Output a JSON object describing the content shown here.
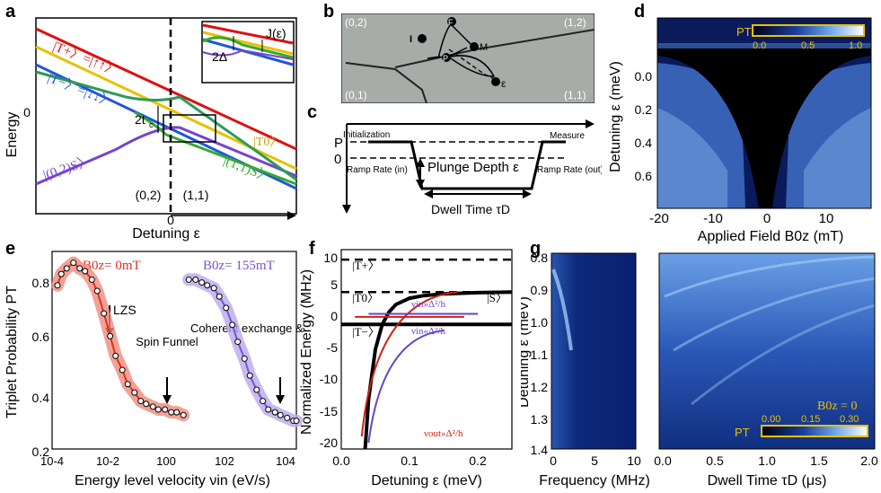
{
  "panels": {
    "a": {
      "label": "a",
      "ylabel": "Energy",
      "xlabel": "Detuning ε",
      "y_tick_zero": "0",
      "x_tick_zero": "0",
      "region_left": "(0,2)",
      "region_right": "(1,1)",
      "gap_label": "2t",
      "gap_label_sub": "c",
      "inset_gap": "2Δ",
      "inset_exchange": "J(ε)",
      "states": {
        "tplus": "|T+〉=|↑↑〉",
        "tminus": "|T−〉=|↓↓〉",
        "s02": "|(0,2)S〉",
        "t0": "|T0〉",
        "s11": "|(1,1)S〉"
      },
      "colors": {
        "tplus": "#dd1111",
        "tminus": "#2255dd",
        "s02": "#7744cc",
        "t0": "#e8c000",
        "s11": "#33aa33",
        "s11_alt": "#2f9a5a"
      }
    },
    "b": {
      "label": "b",
      "corners": [
        "(0,2)",
        "(1,2)",
        "(0,1)",
        "(1,1)"
      ],
      "points": [
        "I",
        "F",
        "M",
        "P",
        "ε"
      ]
    },
    "c": {
      "label": "c",
      "level_p": "P",
      "level_zero": "0",
      "init": "Initialization",
      "measure": "Measure",
      "ramp_in": "Ramp Rate (in)",
      "ramp_out": "Ramp Rate (out)",
      "plunge": "Plunge Depth ε",
      "dwell": "Dwell Time τD"
    },
    "d": {
      "label": "d",
      "ylabel": "Detuning ε (meV)",
      "xlabel": "Applied Field B0z (mT)",
      "colorbar_label": "PT",
      "colorbar_ticks": [
        "0.0",
        "0.5",
        "1.0"
      ],
      "y_ticks": [
        "0.0",
        "0.2",
        "0.4",
        "0.6"
      ],
      "x_ticks": [
        "-20",
        "-10",
        "0",
        "10"
      ]
    },
    "e": {
      "label": "e",
      "ylabel": "Triplet Probability PT",
      "xlabel": "Energy level velocity νin (eV/s)",
      "legend_left": "B0z= 0mT",
      "legend_right": "B0z= 155mT",
      "annotations": [
        "LZS",
        "Spin Funnel",
        "Coherent exchange & ESR"
      ],
      "y_ticks": [
        "0.2",
        "0.4",
        "0.6",
        "0.8"
      ],
      "x_ticks": [
        "10-4",
        "10-2",
        "100",
        "102",
        "104"
      ],
      "colors": {
        "red": "#e03020",
        "red_band": "#f08a7c",
        "purple": "#7755cc",
        "purple_band": "#b9a8ee"
      }
    },
    "f": {
      "label": "f",
      "ylabel": "Normalized Energy (MHz)",
      "xlabel": "Detuning ε (meV)",
      "y_ticks": [
        "10",
        "5",
        "0",
        "-5",
        "-10",
        "-15",
        "-20"
      ],
      "x_ticks": [
        "0.0",
        "0.1",
        "0.2"
      ],
      "state_tplus": "|T+〉",
      "state_t0": "|T0〉",
      "state_tminus": "|T−〉",
      "state_s": "|S〉",
      "fast_label": "νin»Δ²/h",
      "slow_label": "νin«Δ²/h",
      "out_label": "νout»Δ²/h"
    },
    "g": {
      "label": "g",
      "ylabel": "Detuning ε (meV)",
      "xlabel_left": "Frequency (MHz)",
      "xlabel_right": "Dwell Time τD (μs)",
      "y_ticks": [
        "0.8",
        "0.9",
        "1.0",
        "1.1",
        "1.2",
        "1.3",
        "1.4"
      ],
      "x_ticks_left": [
        "0",
        "5",
        "10"
      ],
      "x_ticks_right": [
        "0.0",
        "0.5",
        "1.0",
        "1.5",
        "2.0"
      ],
      "field_label": "B0z = 0",
      "colorbar_label": "PT",
      "colorbar_ticks": [
        "0.00",
        "0.15",
        "0.30"
      ]
    }
  },
  "chart_data": [
    {
      "type": "scatter",
      "title": "e",
      "xlabel": "Energy level velocity νin (eV/s)",
      "ylabel": "Triplet Probability PT",
      "xscale": "log",
      "xlim": [
        0.0001,
        10000
      ],
      "ylim": [
        0.2,
        0.9
      ],
      "series": [
        {
          "name": "B0z = 0mT",
          "color": "#e03020",
          "x": [
            0.00015,
            0.0002,
            0.0003,
            0.0005,
            0.0008,
            0.0012,
            0.002,
            0.003,
            0.005,
            0.008,
            0.012,
            0.02,
            0.03,
            0.05,
            0.08,
            0.12,
            0.2,
            0.3,
            0.5,
            0.8,
            1.2,
            2
          ],
          "y": [
            0.78,
            0.82,
            0.84,
            0.86,
            0.84,
            0.83,
            0.8,
            0.76,
            0.68,
            0.6,
            0.53,
            0.48,
            0.43,
            0.4,
            0.37,
            0.36,
            0.35,
            0.34,
            0.34,
            0.33,
            0.33,
            0.32
          ]
        },
        {
          "name": "B0z = 155mT",
          "color": "#7755cc",
          "x": [
            3,
            5,
            8,
            12,
            20,
            30,
            50,
            80,
            120,
            200,
            300,
            500,
            800,
            1200,
            2000,
            3000,
            5000,
            8000,
            10000
          ],
          "y": [
            0.8,
            0.8,
            0.79,
            0.78,
            0.77,
            0.74,
            0.7,
            0.64,
            0.58,
            0.52,
            0.46,
            0.41,
            0.37,
            0.34,
            0.33,
            0.32,
            0.31,
            0.3,
            0.3
          ]
        }
      ]
    },
    {
      "type": "line",
      "title": "f",
      "xlabel": "Detuning ε (meV)",
      "ylabel": "Normalized Energy (MHz)",
      "xlim": [
        0,
        0.25
      ],
      "ylim": [
        -20,
        12
      ],
      "series": [
        {
          "name": "T+",
          "x": [
            0,
            0.25
          ],
          "y": [
            10.4,
            10.4
          ]
        },
        {
          "name": "T0",
          "x": [
            0,
            0.25
          ],
          "y": [
            5.2,
            5.2
          ]
        },
        {
          "name": "T-",
          "x": [
            0,
            0.25
          ],
          "y": [
            0,
            0
          ]
        },
        {
          "name": "S",
          "x": [
            0.035,
            0.04,
            0.05,
            0.06,
            0.07,
            0.08,
            0.1,
            0.12,
            0.15,
            0.2,
            0.25
          ],
          "y": [
            -20,
            -12,
            -4,
            0,
            2,
            3.2,
            4.2,
            4.6,
            4.9,
            5.1,
            5.2
          ]
        }
      ]
    }
  ]
}
